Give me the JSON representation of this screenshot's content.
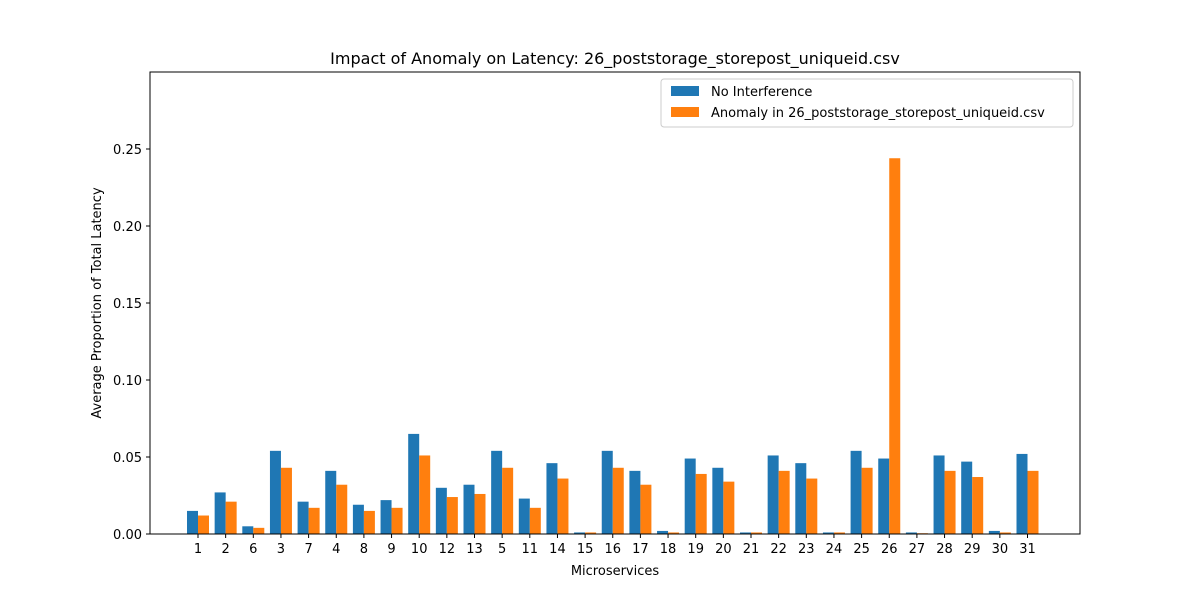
{
  "chart_data": {
    "type": "bar",
    "title": "Impact of Anomaly on Latency: 26_poststorage_storepost_uniqueid.csv",
    "xlabel": "Microservices",
    "ylabel": "Average Proportion of Total Latency",
    "ylim": [
      0,
      0.3
    ],
    "yticks": [
      "0.00",
      "0.05",
      "0.10",
      "0.15",
      "0.20",
      "0.25"
    ],
    "grid": false,
    "legend_position": "top-right",
    "categories": [
      "1",
      "2",
      "6",
      "3",
      "7",
      "4",
      "8",
      "9",
      "10",
      "12",
      "13",
      "5",
      "11",
      "14",
      "15",
      "16",
      "17",
      "18",
      "19",
      "20",
      "21",
      "22",
      "23",
      "24",
      "25",
      "26",
      "27",
      "28",
      "29",
      "30",
      "31"
    ],
    "series": [
      {
        "name": "No Interference",
        "color": "#1f77b4",
        "values": [
          0.015,
          0.027,
          0.005,
          0.054,
          0.021,
          0.041,
          0.019,
          0.022,
          0.065,
          0.03,
          0.032,
          0.054,
          0.023,
          0.046,
          0.001,
          0.054,
          0.041,
          0.002,
          0.049,
          0.043,
          0.001,
          0.051,
          0.046,
          0.001,
          0.054,
          0.049,
          0.001,
          0.051,
          0.047,
          0.002,
          0.052
        ]
      },
      {
        "name": "Anomaly in 26_poststorage_storepost_uniqueid.csv",
        "color": "#ff7f0e",
        "values": [
          0.012,
          0.021,
          0.004,
          0.043,
          0.017,
          0.032,
          0.015,
          0.017,
          0.051,
          0.024,
          0.026,
          0.043,
          0.017,
          0.036,
          0.001,
          0.043,
          0.032,
          0.001,
          0.039,
          0.034,
          0.001,
          0.041,
          0.036,
          0.001,
          0.043,
          0.244,
          0.0005,
          0.041,
          0.037,
          0.001,
          0.041
        ]
      }
    ]
  }
}
